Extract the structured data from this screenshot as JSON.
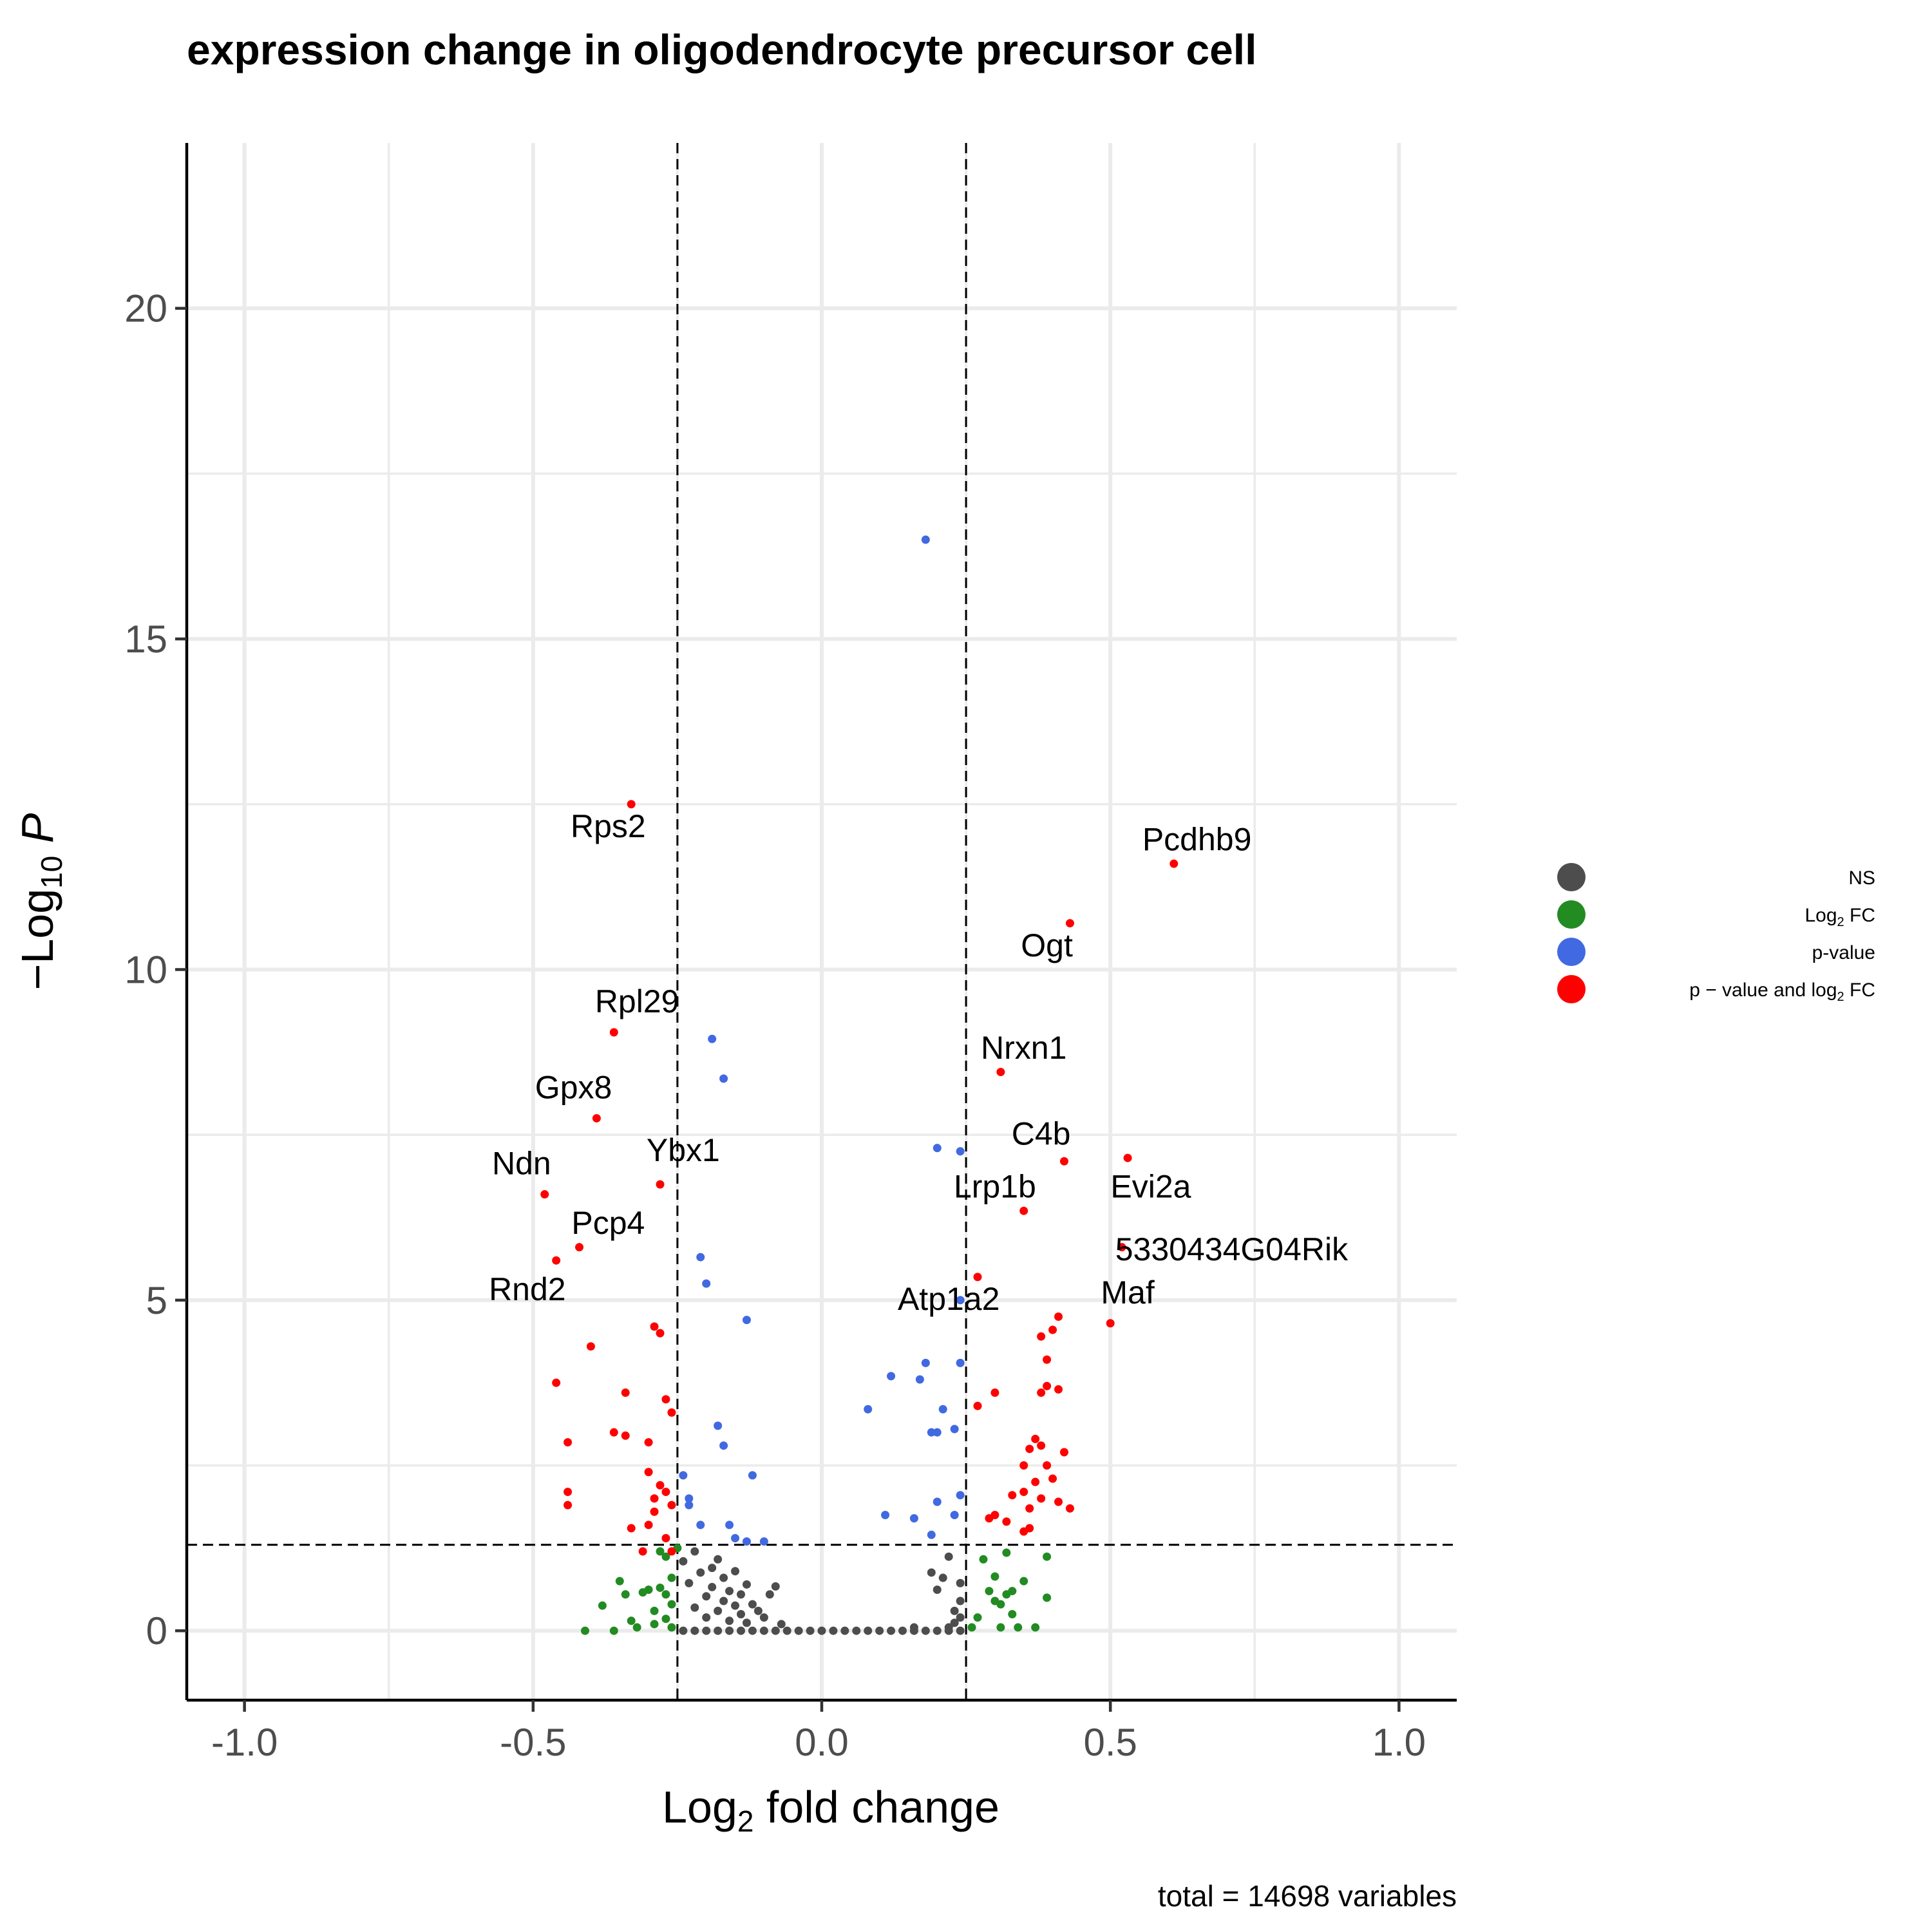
{
  "chart_data": {
    "type": "scatter",
    "title": "expression change in  oligodendrocyte precursor cell",
    "xlabel": {
      "pre": "Log",
      "sub": "2",
      "post": " fold change"
    },
    "ylabel": {
      "pre": "−Log",
      "sub": "10",
      "post": " P"
    },
    "caption": "total = 14698 variables",
    "xlim": [
      -1.1,
      1.1
    ],
    "ylim": [
      -1.05,
      22.5
    ],
    "x_ticks": [
      {
        "value": -1.0,
        "label": "-1.0"
      },
      {
        "value": -0.5,
        "label": "-0.5"
      },
      {
        "value": 0.0,
        "label": "0.0"
      },
      {
        "value": 0.5,
        "label": "0.5"
      },
      {
        "value": 1.0,
        "label": "1.0"
      }
    ],
    "x_minor": [
      -0.75,
      -0.25,
      0.25,
      0.75
    ],
    "y_ticks": [
      {
        "value": 0,
        "label": "0"
      },
      {
        "value": 5,
        "label": "5"
      },
      {
        "value": 10,
        "label": "10"
      },
      {
        "value": 15,
        "label": "15"
      },
      {
        "value": 20,
        "label": "20"
      }
    ],
    "y_minor": [
      2.5,
      7.5,
      12.5,
      17.5
    ],
    "cutoffs": {
      "log2fc": [
        -0.25,
        0.25
      ],
      "neg_log10_p": 1.3
    },
    "grid": true,
    "legend_position": "right",
    "series": [
      {
        "name": "NS",
        "color": "#4d4d4d",
        "points": [
          [
            -0.24,
            0
          ],
          [
            -0.22,
            0
          ],
          [
            -0.2,
            0
          ],
          [
            -0.18,
            0
          ],
          [
            -0.16,
            0
          ],
          [
            -0.14,
            0
          ],
          [
            -0.12,
            0
          ],
          [
            -0.1,
            0
          ],
          [
            -0.08,
            0
          ],
          [
            -0.06,
            0
          ],
          [
            -0.04,
            0
          ],
          [
            -0.02,
            0
          ],
          [
            0.0,
            0
          ],
          [
            0.02,
            0
          ],
          [
            0.04,
            0
          ],
          [
            0.06,
            0
          ],
          [
            0.08,
            0
          ],
          [
            0.1,
            0
          ],
          [
            0.12,
            0
          ],
          [
            0.14,
            0
          ],
          [
            0.16,
            0
          ],
          [
            0.18,
            0
          ],
          [
            0.2,
            0
          ],
          [
            0.22,
            0
          ],
          [
            0.24,
            0
          ],
          [
            -0.24,
            1.05
          ],
          [
            -0.23,
            0.72
          ],
          [
            -0.22,
            0.35
          ],
          [
            -0.21,
            0.88
          ],
          [
            -0.2,
            0.52
          ],
          [
            -0.2,
            0.2
          ],
          [
            -0.19,
            0.66
          ],
          [
            -0.18,
            0.3
          ],
          [
            -0.18,
            1.08
          ],
          [
            -0.17,
            0.45
          ],
          [
            -0.17,
            0.8
          ],
          [
            -0.16,
            0.15
          ],
          [
            -0.16,
            0.6
          ],
          [
            -0.15,
            0.38
          ],
          [
            -0.15,
            0.9
          ],
          [
            -0.14,
            0.25
          ],
          [
            -0.14,
            0.55
          ],
          [
            -0.13,
            0.7
          ],
          [
            -0.13,
            0.12
          ],
          [
            -0.12,
            0.4
          ],
          [
            -0.11,
            0.3
          ],
          [
            -0.1,
            0.2
          ],
          [
            -0.09,
            0.55
          ],
          [
            -0.08,
            0.67
          ],
          [
            -0.07,
            0.1
          ],
          [
            -0.22,
            1.2
          ],
          [
            -0.19,
            0.95
          ],
          [
            0.16,
            0.05
          ],
          [
            0.19,
            0.88
          ],
          [
            0.2,
            0.62
          ],
          [
            0.21,
            0.8
          ],
          [
            0.22,
            1.12
          ],
          [
            0.23,
            0.3
          ],
          [
            0.23,
            0.12
          ],
          [
            0.24,
            0.2
          ],
          [
            0.24,
            0.45
          ],
          [
            0.24,
            0.72
          ],
          [
            0.22,
            0.05
          ]
        ]
      },
      {
        "name": "Log2 FC",
        "color": "#228b22",
        "points": [
          [
            -0.41,
            0
          ],
          [
            -0.36,
            0
          ],
          [
            -0.33,
            0.15
          ],
          [
            -0.32,
            0.05
          ],
          [
            -0.31,
            0.58
          ],
          [
            -0.3,
            0.62
          ],
          [
            -0.29,
            0.3
          ],
          [
            -0.29,
            0.1
          ],
          [
            -0.28,
            0.65
          ],
          [
            -0.27,
            0.55
          ],
          [
            -0.27,
            1.12
          ],
          [
            -0.26,
            0.8
          ],
          [
            -0.26,
            0.4
          ],
          [
            -0.26,
            0.05
          ],
          [
            -0.25,
            1.25
          ],
          [
            -0.34,
            0.55
          ],
          [
            -0.35,
            0.75
          ],
          [
            -0.38,
            0.38
          ],
          [
            -0.27,
            0.18
          ],
          [
            -0.28,
            1.2
          ],
          [
            0.26,
            0.05
          ],
          [
            0.27,
            0.2
          ],
          [
            0.28,
            1.08
          ],
          [
            0.29,
            0.6
          ],
          [
            0.3,
            0.82
          ],
          [
            0.31,
            0.4
          ],
          [
            0.31,
            0.05
          ],
          [
            0.32,
            0.55
          ],
          [
            0.32,
            1.18
          ],
          [
            0.33,
            0.25
          ],
          [
            0.34,
            0.05
          ],
          [
            0.35,
            0.75
          ],
          [
            0.37,
            0.05
          ],
          [
            0.39,
            0.5
          ],
          [
            0.39,
            1.12
          ],
          [
            0.3,
            0.45
          ],
          [
            0.33,
            0.6
          ]
        ]
      },
      {
        "name": "p-value",
        "color": "#4169e1",
        "points": [
          [
            0.18,
            16.5
          ],
          [
            -0.19,
            8.95
          ],
          [
            -0.17,
            8.35
          ],
          [
            -0.21,
            5.65
          ],
          [
            -0.2,
            5.25
          ],
          [
            -0.13,
            4.7
          ],
          [
            -0.18,
            3.1
          ],
          [
            -0.17,
            2.8
          ],
          [
            -0.12,
            2.35
          ],
          [
            -0.24,
            2.35
          ],
          [
            -0.23,
            2.0
          ],
          [
            -0.23,
            1.9
          ],
          [
            -0.21,
            1.6
          ],
          [
            -0.16,
            1.6
          ],
          [
            -0.15,
            1.4
          ],
          [
            -0.13,
            1.35
          ],
          [
            -0.1,
            1.35
          ],
          [
            0.2,
            7.3
          ],
          [
            0.24,
            7.25
          ],
          [
            0.24,
            5.0
          ],
          [
            0.18,
            4.05
          ],
          [
            0.24,
            4.05
          ],
          [
            0.12,
            3.85
          ],
          [
            0.17,
            3.8
          ],
          [
            0.08,
            3.35
          ],
          [
            0.21,
            3.35
          ],
          [
            0.19,
            3.0
          ],
          [
            0.2,
            3.0
          ],
          [
            0.23,
            3.05
          ],
          [
            0.11,
            1.75
          ],
          [
            0.16,
            1.7
          ],
          [
            0.2,
            1.95
          ],
          [
            0.23,
            1.75
          ],
          [
            0.24,
            2.05
          ],
          [
            0.19,
            1.45
          ]
        ]
      },
      {
        "name": "p − value and log2 FC",
        "color": "#ff0000",
        "points": [
          [
            -0.33,
            12.5
          ],
          [
            -0.36,
            9.05
          ],
          [
            -0.39,
            7.75
          ],
          [
            -0.28,
            6.75
          ],
          [
            -0.48,
            6.6
          ],
          [
            -0.42,
            5.8
          ],
          [
            -0.46,
            5.6
          ],
          [
            0.61,
            11.6
          ],
          [
            0.43,
            10.7
          ],
          [
            0.31,
            8.45
          ],
          [
            0.42,
            7.1
          ],
          [
            0.53,
            7.15
          ],
          [
            0.35,
            6.35
          ],
          [
            0.52,
            5.8
          ],
          [
            0.5,
            4.65
          ],
          [
            0.27,
            5.35
          ],
          [
            -0.29,
            4.6
          ],
          [
            -0.28,
            4.5
          ],
          [
            -0.4,
            4.3
          ],
          [
            -0.46,
            3.75
          ],
          [
            -0.34,
            3.6
          ],
          [
            -0.27,
            3.5
          ],
          [
            -0.26,
            3.3
          ],
          [
            -0.36,
            3.0
          ],
          [
            -0.34,
            2.95
          ],
          [
            -0.3,
            2.85
          ],
          [
            -0.44,
            2.85
          ],
          [
            -0.3,
            2.4
          ],
          [
            -0.28,
            2.2
          ],
          [
            -0.29,
            2.0
          ],
          [
            -0.27,
            2.1
          ],
          [
            -0.26,
            1.9
          ],
          [
            -0.3,
            1.6
          ],
          [
            -0.29,
            1.8
          ],
          [
            -0.44,
            1.9
          ],
          [
            -0.44,
            2.1
          ],
          [
            -0.27,
            1.4
          ],
          [
            -0.26,
            1.2
          ],
          [
            -0.33,
            1.55
          ],
          [
            -0.31,
            1.2
          ],
          [
            0.41,
            4.75
          ],
          [
            0.4,
            4.55
          ],
          [
            0.38,
            4.45
          ],
          [
            0.39,
            4.1
          ],
          [
            0.39,
            3.7
          ],
          [
            0.41,
            3.65
          ],
          [
            0.38,
            3.6
          ],
          [
            0.3,
            3.6
          ],
          [
            0.27,
            3.4
          ],
          [
            0.37,
            2.9
          ],
          [
            0.38,
            2.8
          ],
          [
            0.36,
            2.75
          ],
          [
            0.42,
            2.7
          ],
          [
            0.39,
            2.5
          ],
          [
            0.35,
            2.5
          ],
          [
            0.4,
            2.3
          ],
          [
            0.37,
            2.25
          ],
          [
            0.35,
            2.1
          ],
          [
            0.38,
            2.0
          ],
          [
            0.33,
            2.05
          ],
          [
            0.41,
            1.95
          ],
          [
            0.36,
            1.85
          ],
          [
            0.43,
            1.85
          ],
          [
            0.3,
            1.75
          ],
          [
            0.32,
            1.65
          ],
          [
            0.36,
            1.55
          ],
          [
            0.35,
            1.5
          ],
          [
            0.29,
            1.7
          ]
        ]
      }
    ],
    "labels": [
      {
        "text": "Rps2",
        "x": -0.37,
        "y": 12.0
      },
      {
        "text": "Rpl29",
        "x": -0.32,
        "y": 9.35
      },
      {
        "text": "Gpx8",
        "x": -0.43,
        "y": 8.05
      },
      {
        "text": "Ndn",
        "x": -0.52,
        "y": 6.9
      },
      {
        "text": "Ybx1",
        "x": -0.24,
        "y": 7.1
      },
      {
        "text": "Pcp4",
        "x": -0.37,
        "y": 6.0
      },
      {
        "text": "Rnd2",
        "x": -0.51,
        "y": 5.0
      },
      {
        "text": "Pcdhb9",
        "x": 0.65,
        "y": 11.8
      },
      {
        "text": "Ogt",
        "x": 0.39,
        "y": 10.2
      },
      {
        "text": "Nrxn1",
        "x": 0.35,
        "y": 8.65
      },
      {
        "text": "C4b",
        "x": 0.38,
        "y": 7.35
      },
      {
        "text": "Lrp1b",
        "x": 0.3,
        "y": 6.55
      },
      {
        "text": "Evi2a",
        "x": 0.57,
        "y": 6.55
      },
      {
        "text": "5330434G04Rik",
        "x": 0.71,
        "y": 5.6
      },
      {
        "text": "Maf",
        "x": 0.53,
        "y": 4.95
      },
      {
        "text": "Atp1a2",
        "x": 0.22,
        "y": 4.85
      }
    ],
    "legend": [
      {
        "label": "NS",
        "color": "#4d4d4d"
      },
      {
        "label": "Log2 FC",
        "color": "#228b22"
      },
      {
        "label": "p-value",
        "color": "#4169e1"
      },
      {
        "label": "p − value and log2 FC",
        "color": "#ff0000"
      }
    ]
  }
}
